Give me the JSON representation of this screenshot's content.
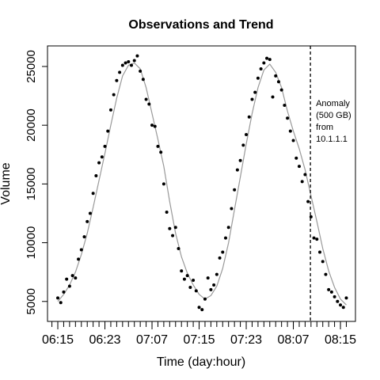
{
  "chart_data": {
    "type": "scatter",
    "title": "Observations and Trend",
    "xlabel": "Time (day:hour)",
    "ylabel": "Volume",
    "xlim": [
      -1.75,
      50.55
    ],
    "ylim": [
      3300,
      26750
    ],
    "xticks": [
      {
        "value": 0,
        "label": "06:15"
      },
      {
        "value": 8,
        "label": "06:23"
      },
      {
        "value": 16,
        "label": "07:07"
      },
      {
        "value": 24,
        "label": "07:15"
      },
      {
        "value": 32,
        "label": "07:23"
      },
      {
        "value": 40,
        "label": "08:07"
      },
      {
        "value": 48,
        "label": "08:15"
      }
    ],
    "xminorticks": [
      -1,
      0,
      1,
      2,
      3,
      4,
      5,
      6,
      7,
      8,
      9,
      10,
      11,
      12,
      13,
      14,
      15,
      16,
      17,
      18,
      19,
      20,
      21,
      22,
      23,
      24,
      25,
      26,
      27,
      28,
      29,
      30,
      31,
      32,
      33,
      34,
      35,
      36,
      37,
      38,
      39,
      40,
      41,
      42,
      43,
      44,
      45,
      46,
      47,
      48,
      49
    ],
    "yticks": [
      5000,
      10000,
      15000,
      20000,
      25000
    ],
    "color": "#000000",
    "x": [
      0,
      0.5,
      1,
      1.5,
      2,
      2.5,
      3,
      3.5,
      4,
      4.5,
      5,
      5.5,
      6,
      6.5,
      7,
      7.5,
      8,
      8.5,
      9,
      9.5,
      10,
      10.5,
      11,
      11.5,
      12,
      12.5,
      13,
      13.5,
      14,
      14.5,
      15,
      15.5,
      16,
      16.5,
      17,
      17.5,
      18,
      18.5,
      19,
      19.5,
      20,
      20.5,
      21,
      21.5,
      22,
      22.5,
      23,
      23.5,
      24,
      24.5,
      25,
      25.5,
      26,
      26.5,
      27,
      27.5,
      28,
      28.5,
      29,
      29.5,
      30,
      30.5,
      31,
      31.5,
      32,
      32.5,
      33,
      33.5,
      34,
      34.5,
      35,
      35.5,
      36,
      36.5,
      37,
      37.5,
      38,
      38.5,
      39,
      39.5,
      40,
      40.5,
      41,
      41.5,
      42,
      42.5,
      43,
      43.5,
      44,
      44.5,
      45,
      45.5,
      46,
      46.5,
      47,
      47.5,
      48,
      48.5,
      49
    ],
    "values": [
      5300,
      4900,
      5800,
      6900,
      6300,
      7200,
      7000,
      8600,
      9400,
      10500,
      11800,
      12500,
      14200,
      15700,
      16800,
      17300,
      18200,
      19500,
      21300,
      22600,
      23800,
      24500,
      25100,
      25300,
      25400,
      25100,
      25500,
      25900,
      24600,
      23900,
      22200,
      21800,
      20000,
      19900,
      18200,
      17700,
      15000,
      12600,
      11200,
      10600,
      11300,
      9500,
      7600,
      6900,
      7200,
      6200,
      6800,
      5900,
      4500,
      4300,
      5200,
      7000,
      6000,
      6400,
      7300,
      8700,
      9200,
      10400,
      11300,
      12900,
      14500,
      16200,
      17000,
      18300,
      19200,
      20700,
      22200,
      22800,
      24000,
      24800,
      25300,
      25700,
      25600,
      22400,
      24200,
      23700,
      23000,
      21700,
      20600,
      19500,
      18700,
      17200,
      16500,
      15200,
      15800,
      13500,
      12200,
      10400,
      10300,
      9200,
      8400,
      7300,
      6000,
      5800,
      5400,
      5000,
      4700,
      4500,
      5300
    ],
    "trend": {
      "color": "#999999",
      "x": [
        0,
        1,
        2,
        3,
        4,
        5,
        6,
        7,
        8,
        9,
        10,
        11,
        12,
        13,
        14,
        15,
        16,
        17,
        18,
        19,
        20,
        21,
        22,
        23,
        24,
        25,
        26,
        27,
        28,
        29,
        30,
        31,
        32,
        33,
        34,
        35,
        36,
        37,
        38,
        39,
        40,
        41,
        42,
        43,
        44,
        45,
        46,
        47,
        48,
        49
      ],
      "values": [
        5000,
        5600,
        6400,
        7500,
        9000,
        10800,
        13000,
        15300,
        17600,
        20000,
        22300,
        24200,
        25100,
        25300,
        24800,
        23200,
        21000,
        18800,
        16500,
        13500,
        10800,
        8800,
        7400,
        6400,
        5600,
        5200,
        5500,
        6300,
        7800,
        10000,
        12800,
        15600,
        18400,
        21000,
        23200,
        24700,
        25200,
        24500,
        23200,
        21200,
        19500,
        18000,
        16200,
        14000,
        11800,
        9500,
        7600,
        6200,
        5200,
        4700
      ]
    },
    "annotation": {
      "x": 42.9,
      "lines": [
        "Anomaly",
        "(500 GB)",
        "from",
        "10.1.1.1"
      ]
    }
  }
}
